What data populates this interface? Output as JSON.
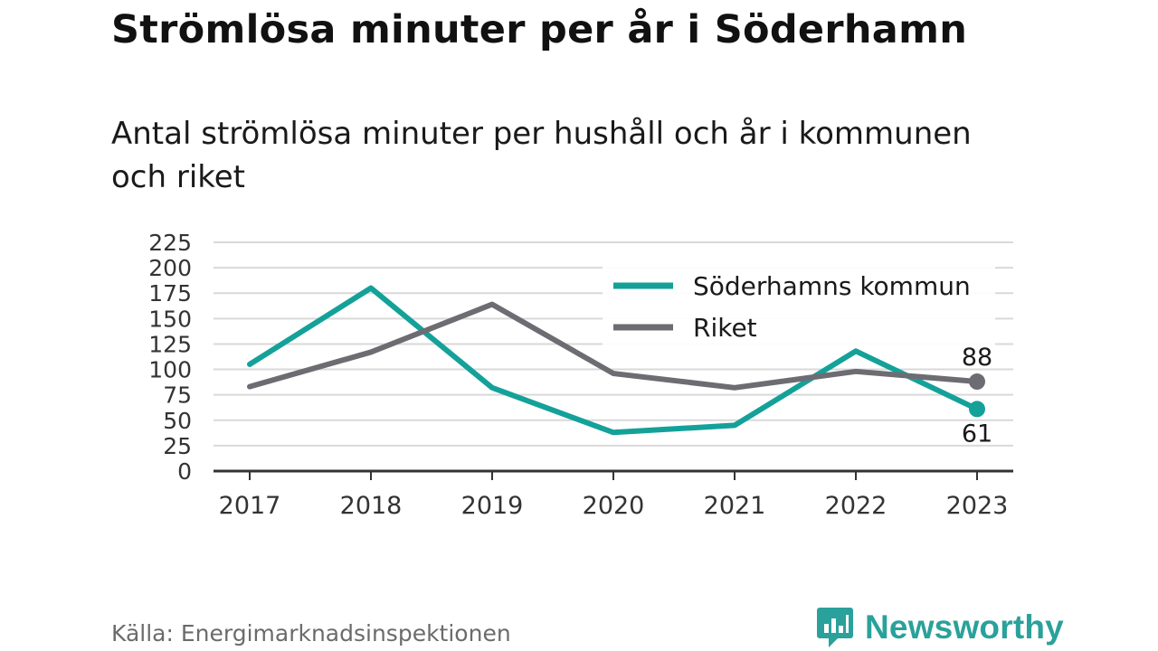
{
  "title": "Strömlösa minuter per år i Söderhamn",
  "subtitle": "Antal strömlösa minuter per hushåll och år i kommunen och riket",
  "source": "Källa: Energimarknadsinspektionen",
  "brand": {
    "name": "Newsworthy",
    "color": "#2aa19b"
  },
  "chart_data": {
    "type": "line",
    "x": [
      "2017",
      "2018",
      "2019",
      "2020",
      "2021",
      "2022",
      "2023"
    ],
    "ylim": [
      0,
      225
    ],
    "yticks": [
      0,
      25,
      50,
      75,
      100,
      125,
      150,
      175,
      200,
      225
    ],
    "grid": true,
    "legend_position": "top-right",
    "series": [
      {
        "name": "Söderhamns kommun",
        "color": "#14a199",
        "values": [
          105,
          180,
          82,
          38,
          45,
          118,
          61
        ],
        "end_label": "61"
      },
      {
        "name": "Riket",
        "color": "#6d6c72",
        "values": [
          83,
          117,
          164,
          96,
          82,
          98,
          88
        ],
        "end_label": "88"
      }
    ]
  }
}
